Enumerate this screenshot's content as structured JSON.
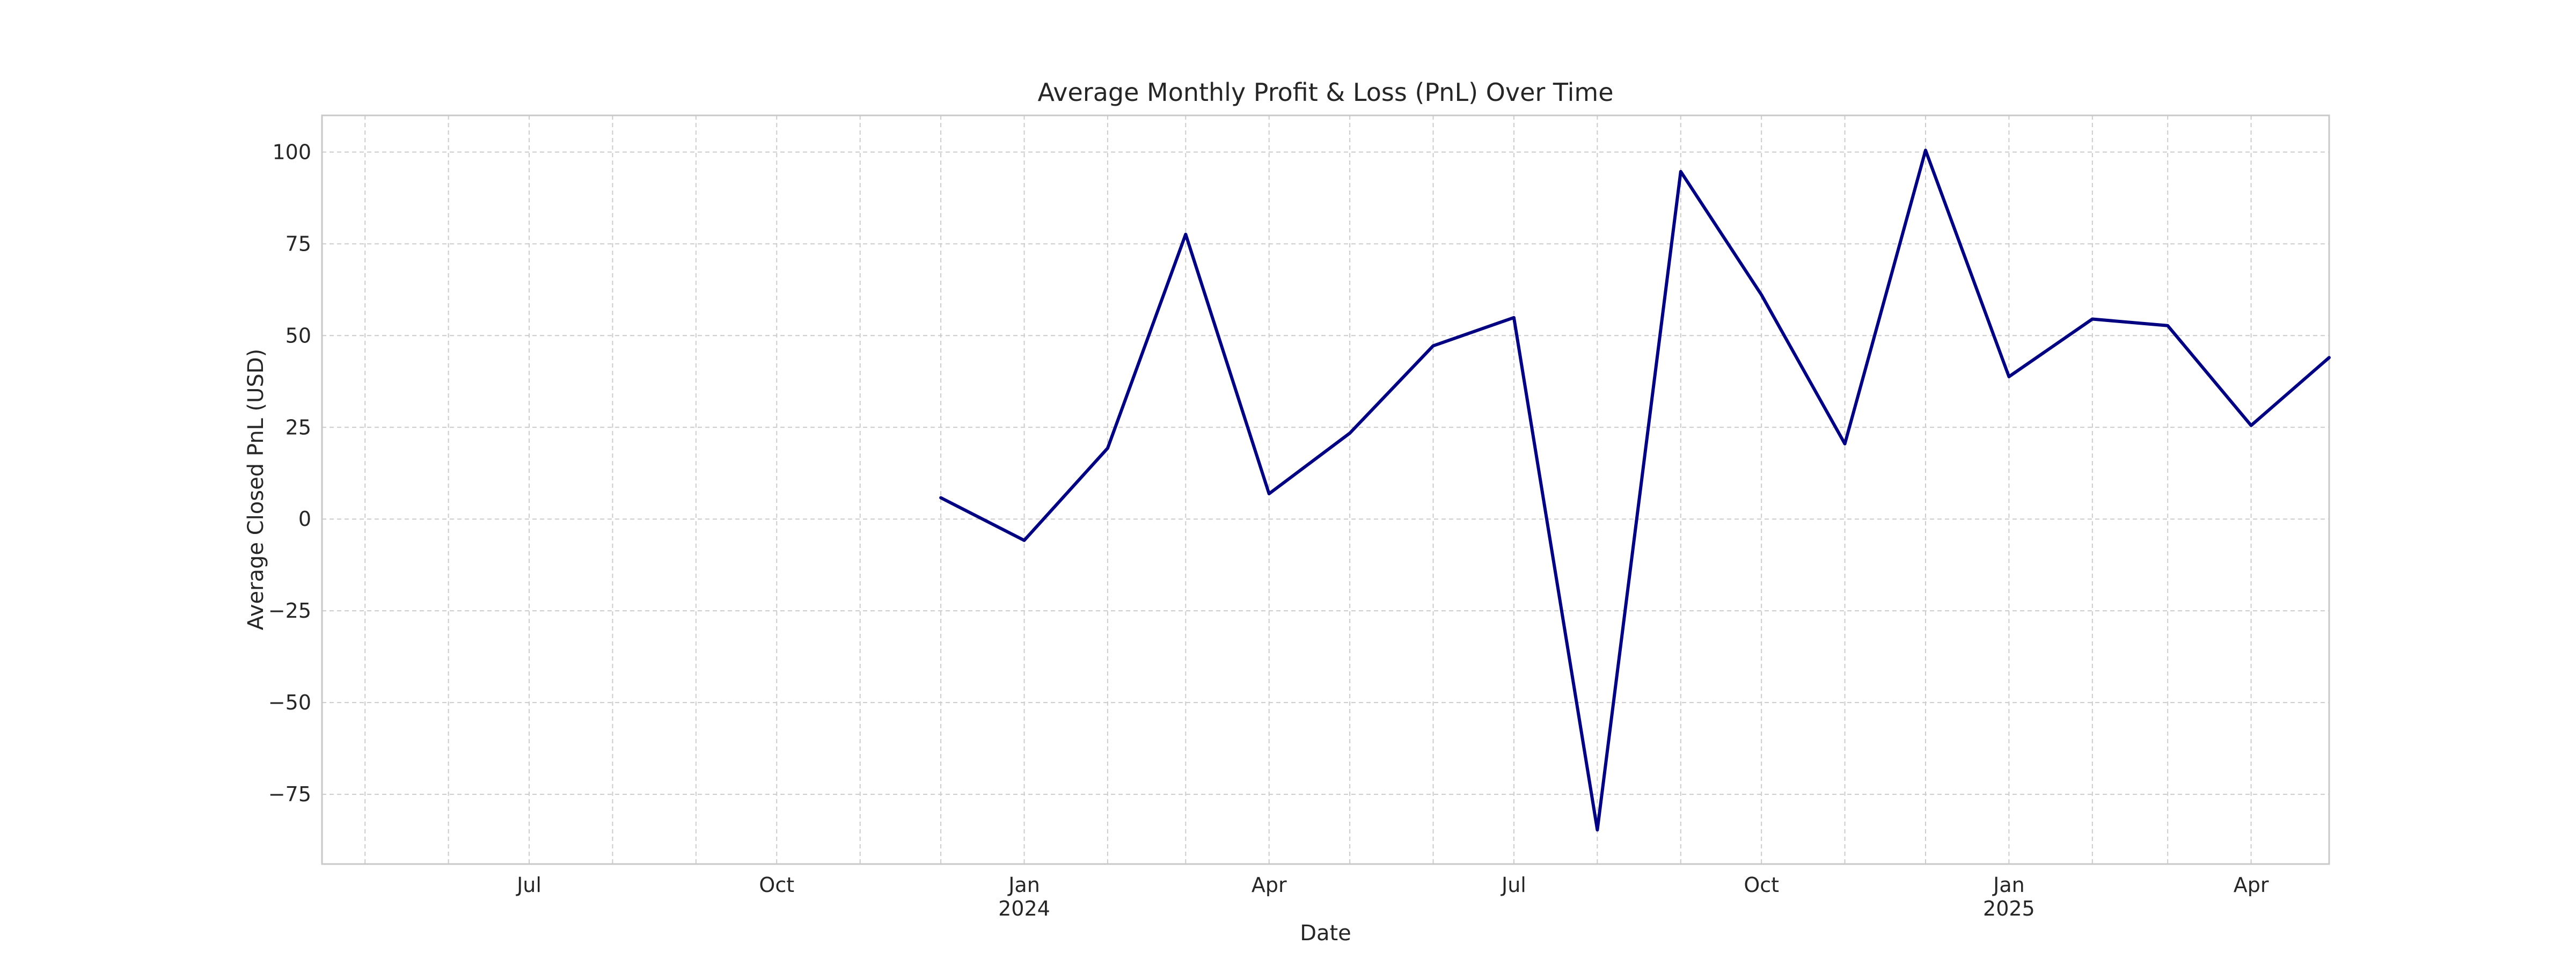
{
  "chart_data": {
    "type": "line",
    "title": "Average Monthly Profit & Loss (PnL) Over Time",
    "xlabel": "Date",
    "ylabel": "Average Closed PnL (USD)",
    "x_range": [
      "2023-04-15",
      "2025-04-30"
    ],
    "ylim": [
      -94,
      110
    ],
    "grid": true,
    "yticks": [
      100,
      75,
      50,
      25,
      0,
      -25,
      -50,
      -75
    ],
    "ytick_labels": [
      "100",
      "75",
      "50",
      "25",
      "0",
      "−25",
      "−50",
      "−75"
    ],
    "xticks": [
      {
        "date": "2023-07-01",
        "label": "Jul",
        "year": ""
      },
      {
        "date": "2023-10-01",
        "label": "Oct",
        "year": ""
      },
      {
        "date": "2024-01-01",
        "label": "Jan",
        "year": "2024"
      },
      {
        "date": "2024-04-01",
        "label": "Apr",
        "year": ""
      },
      {
        "date": "2024-07-01",
        "label": "Jul",
        "year": ""
      },
      {
        "date": "2024-10-01",
        "label": "Oct",
        "year": ""
      },
      {
        "date": "2025-01-01",
        "label": "Jan",
        "year": "2025"
      },
      {
        "date": "2025-04-01",
        "label": "Apr",
        "year": ""
      }
    ],
    "minor_xticks": [
      "2023-05-01",
      "2023-06-01",
      "2023-08-01",
      "2023-09-01",
      "2023-11-01",
      "2023-12-01",
      "2024-02-01",
      "2024-03-01",
      "2024-05-01",
      "2024-06-01",
      "2024-08-01",
      "2024-09-01",
      "2024-11-01",
      "2024-12-01",
      "2025-02-01",
      "2025-03-01"
    ],
    "series": [
      {
        "color": "#000080",
        "x": [
          "2023-12-01",
          "2024-01-01",
          "2024-02-01",
          "2024-03-01",
          "2024-04-01",
          "2024-05-01",
          "2024-06-01",
          "2024-07-01",
          "2024-08-01",
          "2024-09-01",
          "2024-10-01",
          "2024-11-01",
          "2024-12-01",
          "2025-01-01",
          "2025-02-01",
          "2025-03-01",
          "2025-04-01",
          "2025-04-30"
        ],
        "values": [
          5.8,
          -5.8,
          19.3,
          77.6,
          6.9,
          23.4,
          47.2,
          54.9,
          -84.7,
          94.7,
          61.1,
          20.5,
          100.5,
          38.8,
          54.5,
          52.7,
          25.5,
          44.0
        ]
      }
    ]
  }
}
